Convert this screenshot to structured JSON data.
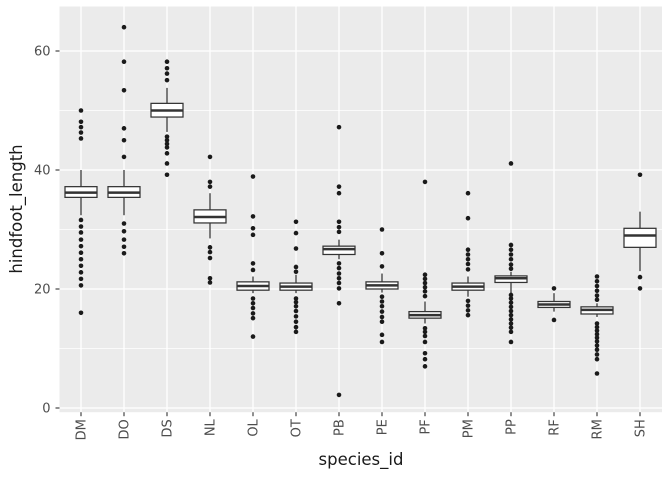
{
  "chart_data": {
    "type": "boxplot",
    "title": "",
    "xlabel": "species_id",
    "ylabel": "hindfoot_length",
    "ylim": [
      -1,
      67.5
    ],
    "yticks": [
      0,
      20,
      40,
      60
    ],
    "ytick_labels": [
      "0",
      "20",
      "40",
      "60"
    ],
    "minor_gridlines": [
      10,
      30,
      50
    ],
    "grid": "on",
    "legend": "none",
    "categories": [
      "DM",
      "DO",
      "DS",
      "NL",
      "OL",
      "OT",
      "PB",
      "PE",
      "PF",
      "PM",
      "PP",
      "RF",
      "RM",
      "SH"
    ],
    "series": [
      {
        "name": "DM",
        "median": 36.2,
        "q1": 35.4,
        "q3": 37.2,
        "whisker_low": 32.4,
        "whisker_high": 40.0,
        "outliers": [
          50,
          48.1,
          47.2,
          46.3,
          45.3,
          31.6,
          30.5,
          29.5,
          28.3,
          27.2,
          26.1,
          25.0,
          23.9,
          22.8,
          21.7,
          20.6,
          16.0
        ]
      },
      {
        "name": "DO",
        "median": 36.2,
        "q1": 35.4,
        "q3": 37.2,
        "whisker_low": 32.4,
        "whisker_high": 40.0,
        "outliers": [
          64,
          58.2,
          53.4,
          47.0,
          45.0,
          42.2,
          31.0,
          29.7,
          28.3,
          27.1,
          26.0
        ]
      },
      {
        "name": "DS",
        "median": 50.0,
        "q1": 48.9,
        "q3": 51.2,
        "whisker_low": 46.4,
        "whisker_high": 53.8,
        "outliers": [
          58.2,
          57.1,
          56.2,
          55.1,
          45.6,
          45.0,
          44.4,
          43.8,
          42.8,
          41.1,
          39.2
        ]
      },
      {
        "name": "NL",
        "median": 32.1,
        "q1": 31.1,
        "q3": 33.3,
        "whisker_low": 28.5,
        "whisker_high": 36.1,
        "outliers": [
          42.2,
          38.0,
          37.2,
          27.0,
          26.2,
          25.2,
          21.8,
          21.1
        ]
      },
      {
        "name": "OL",
        "median": 20.5,
        "q1": 19.8,
        "q3": 21.2,
        "whisker_low": 19.3,
        "whisker_high": 22.1,
        "outliers": [
          38.9,
          32.2,
          30.2,
          29.1,
          24.3,
          23.2,
          18.4,
          17.6,
          16.8,
          15.9,
          15.1,
          12.0
        ]
      },
      {
        "name": "OT",
        "median": 20.4,
        "q1": 19.8,
        "q3": 21.0,
        "whisker_low": 19.3,
        "whisker_high": 22.4,
        "outliers": [
          31.3,
          29.4,
          26.8,
          23.7,
          22.9,
          18.4,
          17.8,
          17.1,
          16.3,
          15.4,
          14.5,
          13.6,
          12.8
        ]
      },
      {
        "name": "PB",
        "median": 26.7,
        "q1": 25.8,
        "q3": 27.2,
        "whisker_low": 25.0,
        "whisker_high": 28.3,
        "outliers": [
          47.2,
          37.2,
          36.1,
          31.3,
          30.4,
          29.6,
          24.3,
          23.5,
          22.6,
          21.8,
          21.0,
          20.1,
          17.6,
          2.2
        ]
      },
      {
        "name": "PE",
        "median": 20.6,
        "q1": 20.0,
        "q3": 21.2,
        "whisker_low": 19.4,
        "whisker_high": 22.6,
        "outliers": [
          30.0,
          26.0,
          23.8,
          18.7,
          17.9,
          17.1,
          16.2,
          15.3,
          14.5,
          12.3,
          11.1
        ]
      },
      {
        "name": "PF",
        "median": 15.6,
        "q1": 15.1,
        "q3": 16.2,
        "whisker_low": 14.2,
        "whisker_high": 17.9,
        "outliers": [
          38.0,
          22.4,
          21.7,
          21.0,
          20.3,
          19.6,
          18.8,
          13.4,
          12.8,
          12.1,
          11.1,
          9.2,
          8.2,
          7.0
        ]
      },
      {
        "name": "PM",
        "median": 20.4,
        "q1": 19.8,
        "q3": 21.0,
        "whisker_low": 18.7,
        "whisker_high": 22.1,
        "outliers": [
          36.1,
          31.9,
          26.6,
          25.8,
          25.0,
          24.2,
          23.3,
          18.0,
          17.2,
          16.4,
          15.6
        ]
      },
      {
        "name": "PP",
        "median": 21.8,
        "q1": 21.1,
        "q3": 22.2,
        "whisker_low": 19.3,
        "whisker_high": 22.9,
        "outliers": [
          41.1,
          27.4,
          26.6,
          25.8,
          25.0,
          24.1,
          23.4,
          19.0,
          18.4,
          17.7,
          17.0,
          16.3,
          15.6,
          14.9,
          14.2,
          13.5,
          12.8,
          11.1
        ]
      },
      {
        "name": "RF",
        "median": 17.4,
        "q1": 16.9,
        "q3": 17.9,
        "whisker_low": 16.2,
        "whisker_high": 19.3,
        "outliers": [
          20.1,
          14.8
        ]
      },
      {
        "name": "RM",
        "median": 16.5,
        "q1": 15.8,
        "q3": 17.0,
        "whisker_low": 15.3,
        "whisker_high": 17.6,
        "outliers": [
          22.1,
          21.3,
          20.5,
          19.7,
          18.9,
          18.2,
          14.2,
          13.6,
          13.0,
          12.4,
          11.8,
          11.2,
          10.5,
          9.8,
          9.0,
          8.2,
          5.8
        ]
      },
      {
        "name": "SH",
        "median": 29.0,
        "q1": 27.0,
        "q3": 30.2,
        "whisker_low": 23.0,
        "whisker_high": 33.0,
        "outliers": [
          39.2,
          22.0,
          20.1
        ]
      }
    ],
    "colors": {
      "panel_background": "#EBEBEB",
      "gridline": "#FFFFFF",
      "box_stroke": "#333333",
      "box_fill": "#FFFFFF",
      "point": "#1A1A1A",
      "tick_mark": "#333333",
      "tick_label": "#4D4D4D",
      "axis_title": "#1A1A1A",
      "figure_background": "#FFFFFF"
    }
  }
}
